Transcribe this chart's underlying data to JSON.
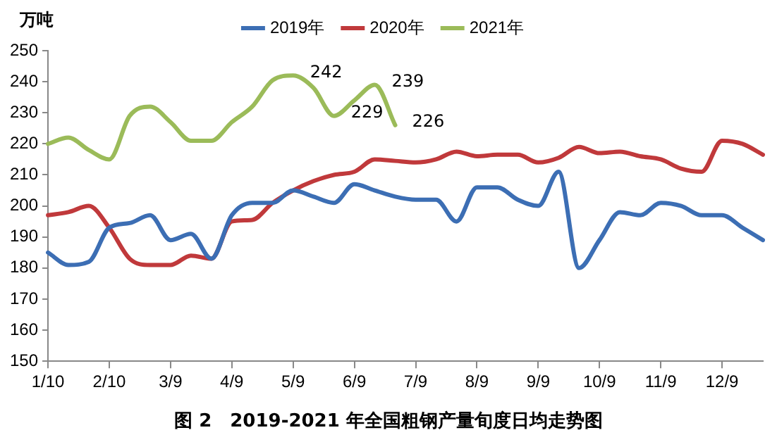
{
  "chart_data": {
    "type": "line",
    "title": "图 2　2019-2021 年全国粗钢产量旬度日均走势图",
    "ylabel": "万吨",
    "categories": [
      "1/10",
      null,
      null,
      "2/10",
      null,
      null,
      "3/9",
      null,
      null,
      "4/9",
      null,
      null,
      "5/9",
      null,
      null,
      "6/9",
      null,
      null,
      "7/9",
      null,
      null,
      "8/9",
      null,
      null,
      "9/9",
      null,
      null,
      "10/9",
      null,
      null,
      "11/9",
      null,
      null,
      "12/9",
      null,
      null
    ],
    "series": [
      {
        "name": "2019年",
        "color": "#3c6eb4",
        "values": [
          185,
          181,
          182,
          193,
          194.5,
          197,
          189,
          191,
          183,
          197,
          201,
          201,
          205,
          203,
          201,
          207,
          205,
          203,
          202,
          202,
          195,
          206,
          206,
          202,
          200,
          211,
          180,
          189,
          198,
          197,
          201,
          200,
          197,
          197,
          193,
          189
        ]
      },
      {
        "name": "2020年",
        "color": "#c0393b",
        "values": [
          197,
          198,
          200,
          193,
          183,
          181,
          181,
          184,
          183,
          195,
          195.5,
          201,
          205,
          208,
          210,
          211,
          215,
          214.5,
          214,
          215,
          217.5,
          216,
          216.5,
          216.5,
          214,
          215.5,
          219,
          217,
          217.5,
          216,
          215,
          212,
          211,
          221,
          220,
          216.5
        ]
      },
      {
        "name": "2021年",
        "color": "#9bbb59",
        "values": [
          220,
          222,
          218,
          215,
          229,
          232,
          227,
          221,
          221,
          227,
          232,
          240.5,
          242,
          238,
          229,
          234,
          239,
          226,
          null,
          null,
          null,
          null,
          null,
          null,
          null,
          null,
          null,
          null,
          null,
          null,
          null,
          null,
          null,
          null,
          null,
          null
        ],
        "value_labels": [
          null,
          null,
          null,
          null,
          null,
          null,
          null,
          null,
          null,
          null,
          null,
          null,
          "242",
          null,
          "229",
          null,
          "239",
          "226",
          null,
          null,
          null,
          null,
          null,
          null,
          null,
          null,
          null,
          null,
          null,
          null,
          null,
          null,
          null,
          null,
          null,
          null
        ]
      }
    ],
    "ylim": [
      150,
      250
    ],
    "yticks": [
      150,
      160,
      170,
      180,
      190,
      200,
      210,
      220,
      230,
      240,
      250
    ],
    "legend": "top",
    "marker": "none",
    "line_style": "solid"
  }
}
